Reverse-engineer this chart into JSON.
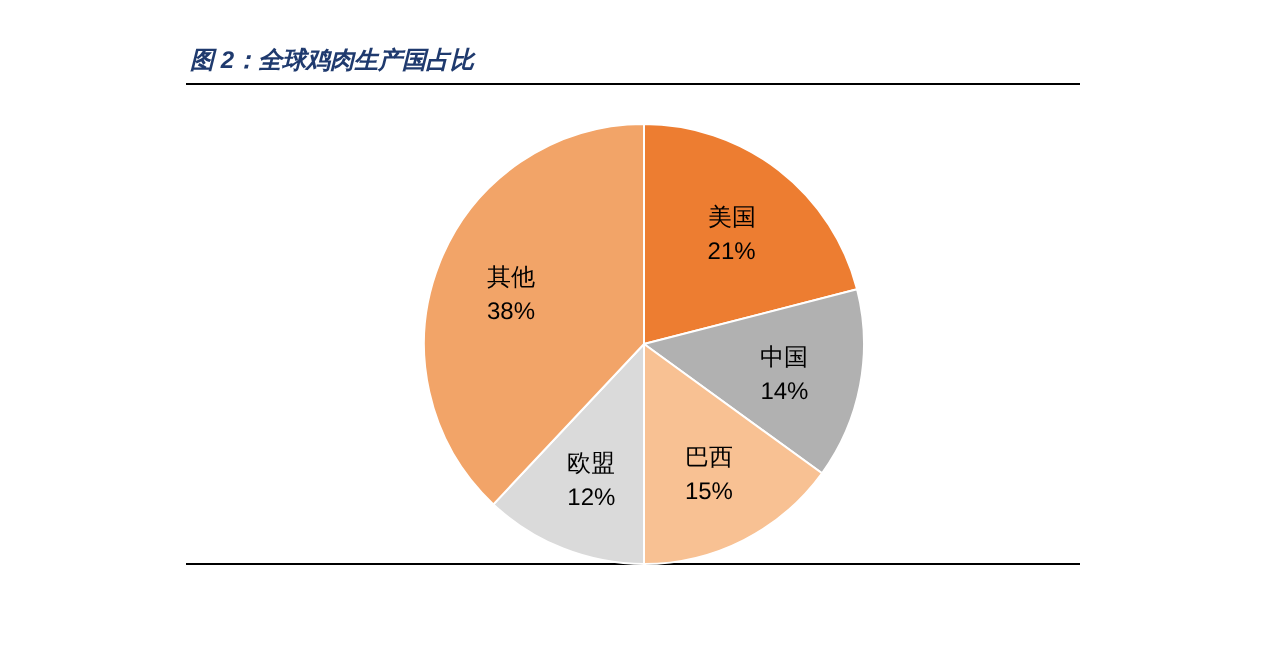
{
  "chart_data": {
    "type": "pie",
    "title": "图 2：全球鸡肉生产国占比",
    "categories": [
      "美国",
      "中国",
      "巴西",
      "欧盟",
      "其他"
    ],
    "values": [
      21,
      14,
      15,
      12,
      38
    ],
    "colors": [
      "#ed7d31",
      "#b1b1b1",
      "#f8c193",
      "#dadada",
      "#f2a468"
    ],
    "value_labels": [
      "21%",
      "14%",
      "15%",
      "12%",
      "38%"
    ]
  }
}
